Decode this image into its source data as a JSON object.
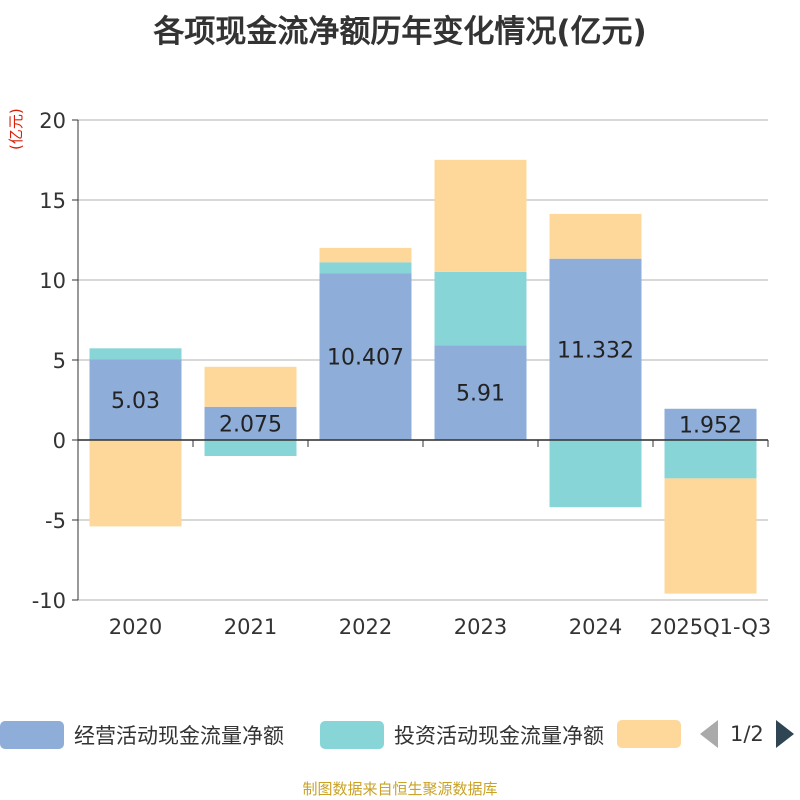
{
  "title": "各项现金流净额历年变化情况(亿元)",
  "unit_label": "(亿元)",
  "source": "制图数据来自恒生聚源数据库",
  "legend": {
    "items": [
      {
        "label": "经营活动现金流量净额",
        "color": "#8eadd9"
      },
      {
        "label": "投资活动现金流量净额",
        "color": "#88d5d8"
      },
      {
        "label": "",
        "color": "#fdd89a"
      }
    ],
    "page": "1/2"
  },
  "chart_data": {
    "type": "bar",
    "stacked": true,
    "categories": [
      "2020",
      "2021",
      "2022",
      "2023",
      "2024",
      "2025Q1-Q3"
    ],
    "ylim": [
      -10,
      20
    ],
    "yticks": [
      -10,
      -5,
      0,
      5,
      10,
      15,
      20
    ],
    "grid": true,
    "series": [
      {
        "name": "经营活动现金流量净额",
        "color": "#8eadd9",
        "values": [
          5.03,
          2.075,
          10.407,
          5.91,
          11.332,
          1.952
        ],
        "show_labels": true,
        "labels": [
          "5.03",
          "2.075",
          "10.407",
          "5.91",
          "11.332",
          "1.952"
        ]
      },
      {
        "name": "投资活动现金流量净额",
        "color": "#88d5d8",
        "values": [
          0.7,
          -1.0,
          0.7,
          4.6,
          -4.2,
          -2.4
        ],
        "show_labels": false
      },
      {
        "name": "",
        "color": "#fdd89a",
        "values": [
          -5.4,
          2.5,
          0.9,
          7.0,
          2.8,
          -7.2
        ],
        "show_labels": false
      }
    ]
  }
}
